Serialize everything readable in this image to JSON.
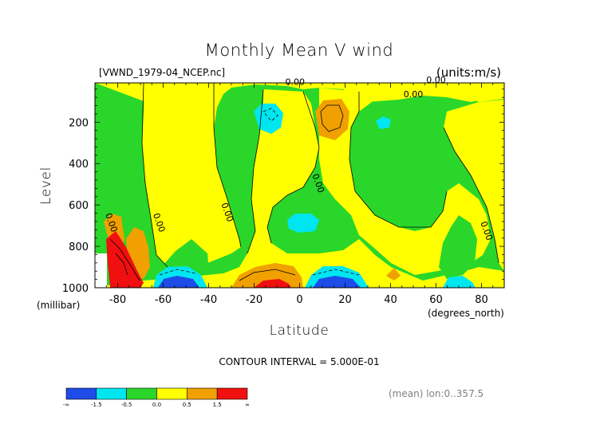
{
  "chart_data": {
    "type": "heatmap",
    "title": "Monthly Mean V wind",
    "file_label": "[VWND_1979-04_NCEP.nc]",
    "units_label": "(units:m/s)",
    "xlabel": "Latitude",
    "ylabel": "Level",
    "x_unit": "(degrees_north)",
    "y_unit": "(millibar)",
    "xlim": [
      -90,
      90
    ],
    "ylim": [
      1000,
      10
    ],
    "x_ticks": [
      -80,
      -60,
      -40,
      -20,
      0,
      20,
      40,
      60,
      80
    ],
    "y_ticks": [
      200,
      400,
      600,
      800,
      1000
    ],
    "contour_interval_text": "CONTOUR INTERVAL = 5.000E-01",
    "mean_text": "(mean) lon:0..357.5",
    "contour_labels": [
      {
        "text": "0.00",
        "lat": -2,
        "lev": 20
      },
      {
        "text": "0.00",
        "lat": 60,
        "lev": 10
      },
      {
        "text": "0.00",
        "lat": 50,
        "lev": 80
      },
      {
        "text": "0.00",
        "lat": 7,
        "lev": 500
      },
      {
        "text": "0.00",
        "lat": -33,
        "lev": 640
      },
      {
        "text": "0.00",
        "lat": -63,
        "lev": 690
      },
      {
        "text": "0.00",
        "lat": -84,
        "lev": 690
      },
      {
        "text": "0.00",
        "lat": 81,
        "lev": 730
      }
    ],
    "legend": {
      "labels": [
        "-∞",
        "-1.5",
        "-0.5",
        "0.0",
        "0.5",
        "1.5",
        "∞"
      ],
      "colors": [
        "#1e4ce8",
        "#00e6f0",
        "#2ad62a",
        "#ffff00",
        "#f0a000",
        "#f01010"
      ]
    }
  }
}
